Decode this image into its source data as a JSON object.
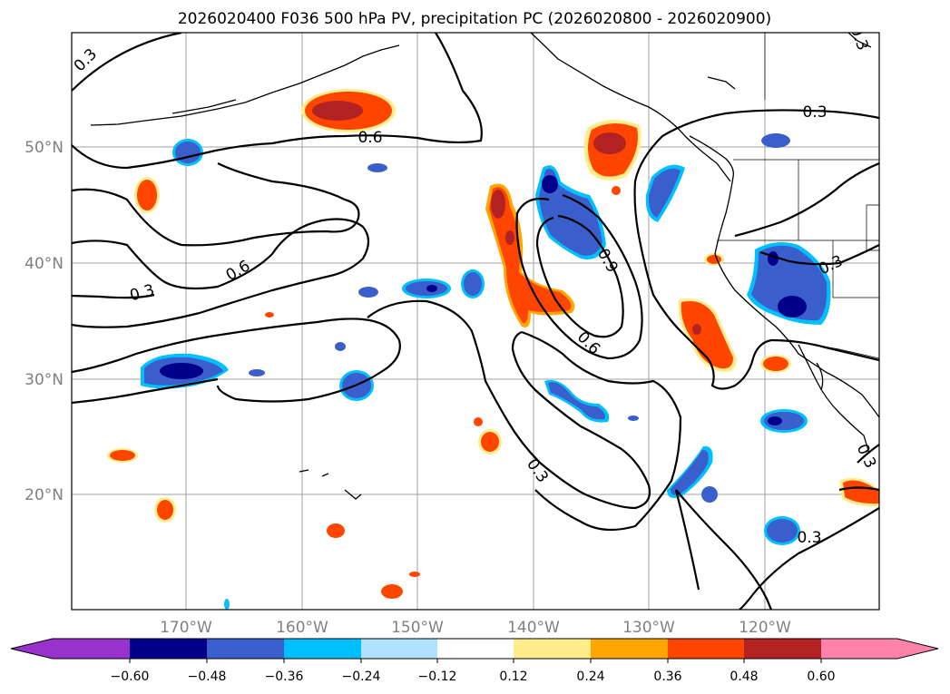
{
  "title": "2026020400 F036 500 hPa PV, precipitation PC (2026020800 - 2026020900)",
  "lat_labels": [
    "50°N",
    "40°N",
    "30°N",
    "20°N"
  ],
  "lon_labels": [
    "170°W",
    "160°W",
    "150°W",
    "140°W",
    "130°W",
    "120°W"
  ],
  "colorbar": {
    "ticks": [
      "−0.60",
      "−0.48",
      "−0.36",
      "−0.24",
      "−0.12",
      "0.12",
      "0.24",
      "0.36",
      "0.48",
      "0.60"
    ],
    "colors": {
      "under": "#9932cc",
      "n060_n048": "#00008b",
      "n048_n036": "#3a5fcd",
      "n036_n024": "#00bfff",
      "n024_n012": "#b0e2ff",
      "n012_p012": "#ffffff",
      "p012_p024": "#ffec8b",
      "p024_p036": "#ffa500",
      "p036_p048": "#ff4500",
      "p048_p060": "#b22222",
      "over": "#ff82ab"
    }
  },
  "contour_labels": {
    "l1": "0.3",
    "l2": "0.6",
    "l3": "0.3",
    "l4": "0.6",
    "l5": "0.3",
    "l6": "0.9",
    "l7": "0.6",
    "l8": "0.3",
    "l9": "0.3",
    "l10": "0.3",
    "l11": "0.3",
    "l12": "0.3"
  }
}
